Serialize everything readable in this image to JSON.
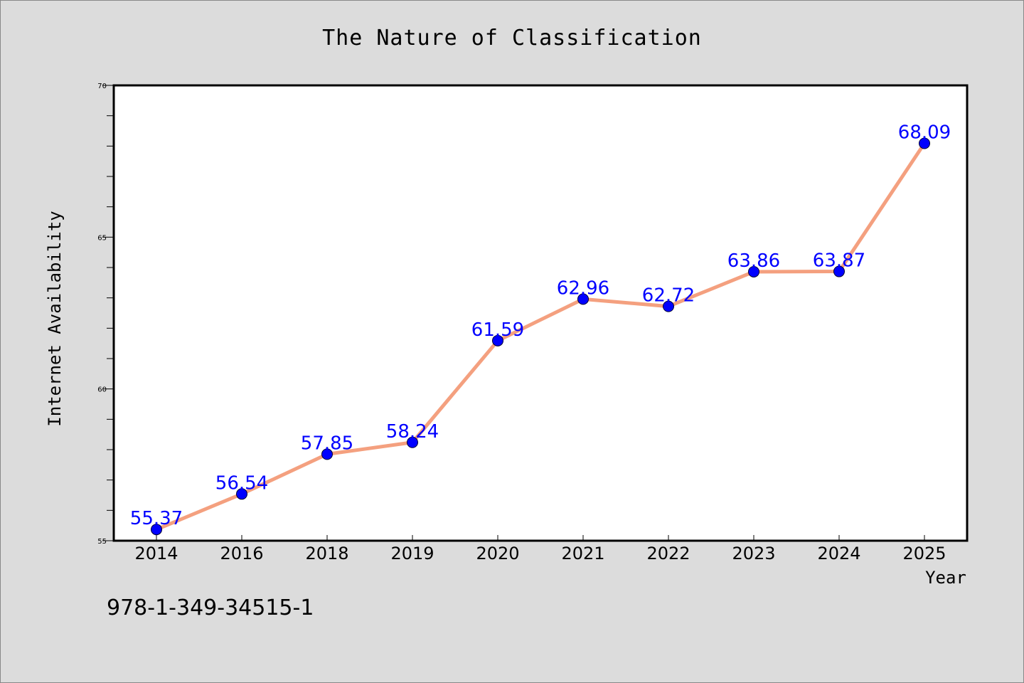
{
  "chart_data": {
    "type": "line",
    "title": "The Nature of Classification",
    "xlabel": "Year",
    "ylabel": "Internet Availability",
    "categories": [
      "2014",
      "2016",
      "2018",
      "2019",
      "2020",
      "2021",
      "2022",
      "2023",
      "2024",
      "2025"
    ],
    "series": [
      {
        "values": [
          55.37,
          56.54,
          57.85,
          58.24,
          61.59,
          62.96,
          62.72,
          63.86,
          63.87,
          68.09
        ]
      }
    ],
    "data_labels": [
      "55.37",
      "56.54",
      "57.85",
      "58.24",
      "61.59",
      "62.96",
      "62.72",
      "63.86",
      "63.87",
      "68.09"
    ],
    "ylim": [
      55,
      70
    ],
    "y_ticks": [
      55,
      60,
      65,
      70
    ],
    "y_tick_labels": [
      "55",
      "60",
      "65",
      "70"
    ],
    "y_minor_step": 1,
    "grid": false,
    "legend": "none",
    "colors": {
      "line": "#f4a07f",
      "marker": "#0000ff",
      "marker_edge": "#000033",
      "data_label": "#0000ff",
      "background": "#dcdcdc",
      "plot_area": "#ffffff"
    }
  },
  "footer_text": "978-1-349-34515-1"
}
